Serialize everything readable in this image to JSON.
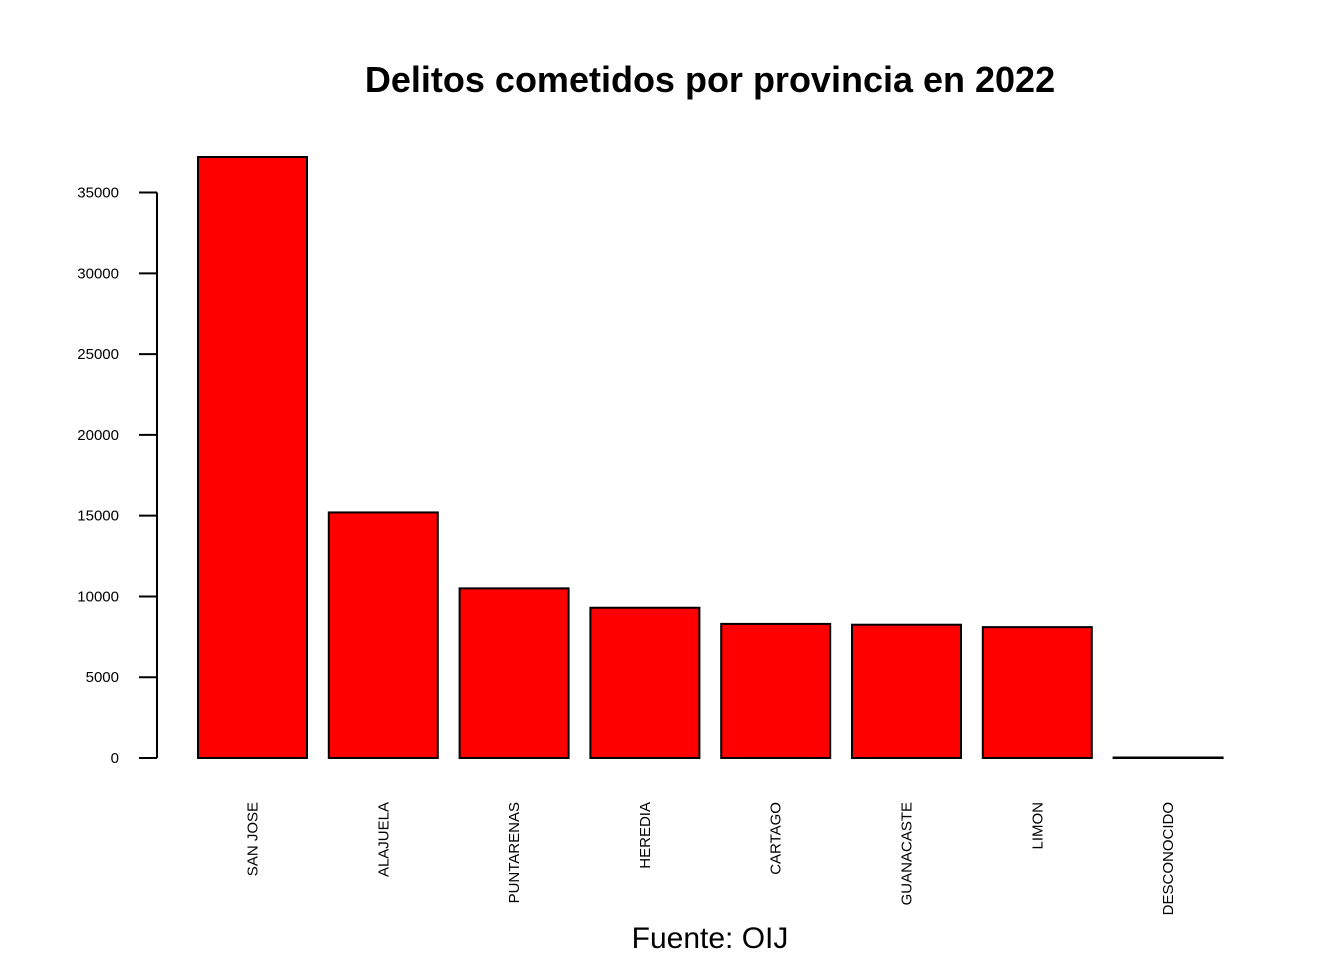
{
  "chart_data": {
    "type": "bar",
    "title": "Delitos cometidos por provincia en 2022",
    "xlabel": "Fuente: OIJ",
    "ylabel": "",
    "categories": [
      "SAN JOSE",
      "ALAJUELA",
      "PUNTARENAS",
      "HEREDIA",
      "CARTAGO",
      "GUANACASTE",
      "LIMON",
      "DESCONOCIDO"
    ],
    "values": [
      37200,
      15200,
      10500,
      9300,
      8300,
      8250,
      8100,
      10
    ],
    "ylim": [
      0,
      37200
    ],
    "yticks": [
      0,
      5000,
      10000,
      15000,
      20000,
      25000,
      30000,
      35000
    ],
    "bar_color": "#ff0000",
    "grid": false,
    "legend": "none"
  }
}
